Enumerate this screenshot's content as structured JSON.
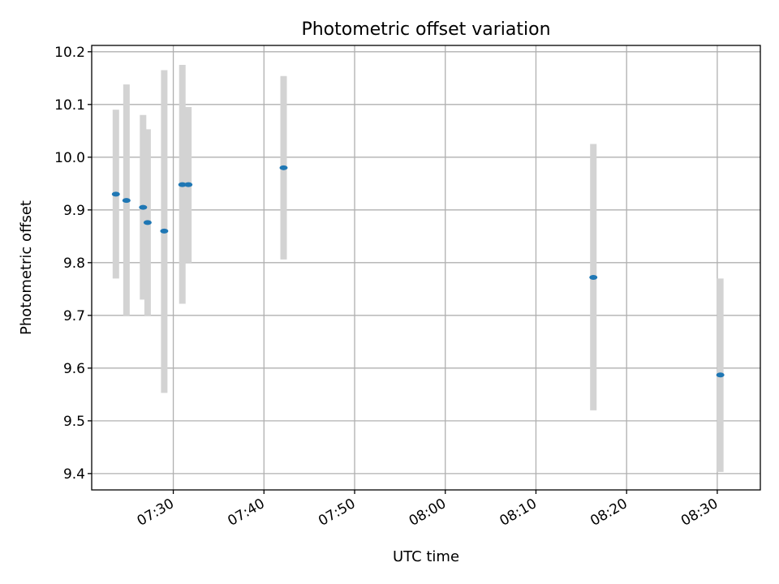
{
  "chart_data": {
    "type": "scatter",
    "title": "Photometric offset variation",
    "xlabel": "UTC time",
    "ylabel": "Photometric offset",
    "x_ticks": [
      "07:30",
      "07:40",
      "07:50",
      "08:00",
      "08:10",
      "08:20",
      "08:30"
    ],
    "y_ticks": [
      "9.4",
      "9.5",
      "9.6",
      "9.7",
      "9.8",
      "9.9",
      "10.0",
      "10.1",
      "10.2"
    ],
    "xlim": [
      "07:21:00",
      "08:34:45"
    ],
    "ylim": [
      9.369,
      10.212
    ],
    "grid": true,
    "colors": {
      "point": "#1f77b4",
      "errorbar": "#d3d3d3",
      "grid": "#b0b0b0"
    },
    "points": [
      {
        "x": "07:23:40",
        "y": 9.93,
        "ylow": 9.77,
        "yhigh": 10.09
      },
      {
        "x": "07:24:50",
        "y": 9.918,
        "ylow": 9.7,
        "yhigh": 10.138
      },
      {
        "x": "07:26:40",
        "y": 9.905,
        "ylow": 9.73,
        "yhigh": 10.08
      },
      {
        "x": "07:27:10",
        "y": 9.876,
        "ylow": 9.7,
        "yhigh": 10.053
      },
      {
        "x": "07:29:00",
        "y": 9.86,
        "ylow": 9.553,
        "yhigh": 10.165
      },
      {
        "x": "07:31:00",
        "y": 9.948,
        "ylow": 9.722,
        "yhigh": 10.175
      },
      {
        "x": "07:31:40",
        "y": 9.948,
        "ylow": 9.8,
        "yhigh": 10.095
      },
      {
        "x": "07:42:10",
        "y": 9.98,
        "ylow": 9.806,
        "yhigh": 10.154
      },
      {
        "x": "08:16:20",
        "y": 9.772,
        "ylow": 9.52,
        "yhigh": 10.025
      },
      {
        "x": "08:30:20",
        "y": 9.587,
        "ylow": 9.403,
        "yhigh": 9.77
      }
    ]
  }
}
